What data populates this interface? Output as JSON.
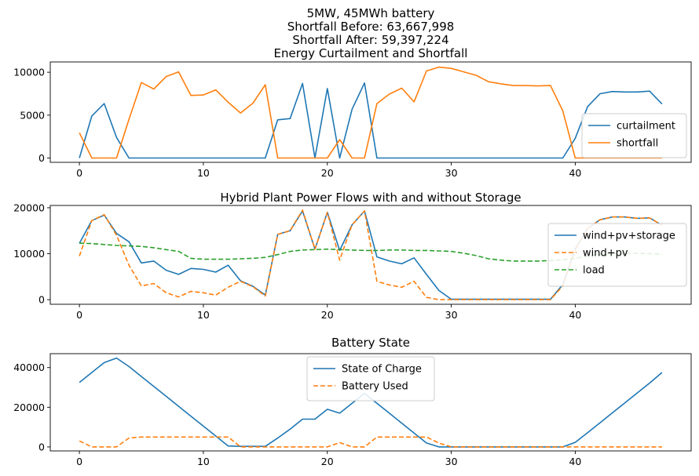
{
  "figure": {
    "suptitle_lines": [
      "5MW, 45MWh battery",
      "Shortfall Before: 63,667,998",
      "Shortfall After: 59,397,224"
    ]
  },
  "chart_data": [
    {
      "type": "line",
      "title": "Energy Curtailment and Shortfall",
      "xlim": [
        -2.35,
        49.35
      ],
      "ylim": [
        -500,
        11200
      ],
      "xticks": [
        0,
        10,
        20,
        30,
        40
      ],
      "yticks": [
        0,
        5000,
        10000
      ],
      "grid": false,
      "legend_position": "lower-right",
      "x": [
        0,
        1,
        2,
        3,
        4,
        5,
        6,
        7,
        8,
        9,
        10,
        11,
        12,
        13,
        14,
        15,
        16,
        17,
        18,
        19,
        20,
        21,
        22,
        23,
        24,
        25,
        26,
        27,
        28,
        29,
        30,
        31,
        32,
        33,
        34,
        35,
        36,
        37,
        38,
        39,
        40,
        41,
        42,
        43,
        44,
        45,
        46,
        47
      ],
      "series": [
        {
          "name": "curtailment",
          "color": "#1f77b4",
          "dash": "solid",
          "values": [
            0,
            4900,
            6350,
            2400,
            0,
            0,
            0,
            0,
            0,
            0,
            0,
            0,
            0,
            0,
            0,
            0,
            4450,
            4600,
            8700,
            0,
            8100,
            0,
            5700,
            8750,
            0,
            0,
            0,
            0,
            0,
            0,
            0,
            0,
            0,
            0,
            0,
            0,
            0,
            0,
            0,
            0,
            2300,
            6000,
            7500,
            7750,
            7700,
            7700,
            7800,
            6300
          ]
        },
        {
          "name": "shortfall",
          "color": "#ff7f0e",
          "dash": "solid",
          "values": [
            2950,
            0,
            0,
            0,
            4500,
            8800,
            8050,
            9500,
            10050,
            7300,
            7350,
            7950,
            6500,
            5250,
            6400,
            8550,
            0,
            0,
            0,
            0,
            0,
            2150,
            0,
            0,
            6350,
            7450,
            8150,
            6550,
            10150,
            10600,
            10450,
            10050,
            9650,
            8900,
            8650,
            8450,
            8450,
            8400,
            8450,
            5500,
            0,
            0,
            0,
            0,
            0,
            0,
            0,
            0
          ]
        }
      ]
    },
    {
      "type": "line",
      "title": "Hybrid Plant Power Flows with and without Storage",
      "xlim": [
        -2.35,
        49.35
      ],
      "ylim": [
        -1000,
        20500
      ],
      "xticks": [
        0,
        10,
        20,
        30,
        40
      ],
      "yticks": [
        0,
        10000,
        20000
      ],
      "grid": false,
      "legend_position": "center-right",
      "x": [
        0,
        1,
        2,
        3,
        4,
        5,
        6,
        7,
        8,
        9,
        10,
        11,
        12,
        13,
        14,
        15,
        16,
        17,
        18,
        19,
        20,
        21,
        22,
        23,
        24,
        25,
        26,
        27,
        28,
        29,
        30,
        31,
        32,
        33,
        34,
        35,
        36,
        37,
        38,
        39,
        40,
        41,
        42,
        43,
        44,
        45,
        46,
        47
      ],
      "series": [
        {
          "name": "wind+pv+storage",
          "color": "#1f77b4",
          "dash": "solid",
          "values": [
            12250,
            17200,
            18400,
            14400,
            12600,
            8000,
            8400,
            6400,
            5500,
            6800,
            6600,
            6000,
            7500,
            4100,
            2900,
            1000,
            14200,
            15000,
            19300,
            11000,
            19000,
            10700,
            16300,
            19300,
            9300,
            8400,
            7800,
            9100,
            5500,
            2000,
            100,
            100,
            100,
            100,
            100,
            100,
            100,
            100,
            100,
            3300,
            11000,
            15500,
            17400,
            18000,
            18000,
            17700,
            17800,
            16200
          ]
        },
        {
          "name": "wind+pv",
          "color": "#ff7f0e",
          "dash": "dashed",
          "values": [
            9500,
            17200,
            18500,
            14000,
            7500,
            3000,
            3500,
            1500,
            600,
            1800,
            1500,
            1000,
            2700,
            4000,
            2800,
            800,
            14200,
            15000,
            19500,
            11000,
            19000,
            8600,
            16300,
            19300,
            4000,
            3200,
            2700,
            4000,
            500,
            0,
            0,
            0,
            0,
            0,
            0,
            0,
            0,
            0,
            0,
            3000,
            10900,
            15500,
            17400,
            18000,
            18000,
            17700,
            17800,
            16200
          ]
        },
        {
          "name": "load",
          "color": "#2ca02c",
          "dash": "dashed",
          "values": [
            12300,
            12200,
            12000,
            11800,
            11700,
            11600,
            11300,
            10900,
            10500,
            9000,
            8800,
            8800,
            8800,
            8900,
            9000,
            9200,
            9800,
            10500,
            10800,
            10900,
            11000,
            10900,
            10800,
            10700,
            10700,
            10800,
            10800,
            10700,
            10700,
            10600,
            10500,
            10100,
            9600,
            8900,
            8600,
            8400,
            8400,
            8400,
            8500,
            8700,
            9000,
            9500,
            9800,
            10000,
            10100,
            10100,
            10000,
            9900
          ]
        }
      ]
    },
    {
      "type": "line",
      "title": "Battery State",
      "xlim": [
        -2.35,
        49.35
      ],
      "ylim": [
        -2000,
        47000
      ],
      "xticks": [
        0,
        10,
        20,
        30,
        40
      ],
      "yticks": [
        0,
        20000,
        40000
      ],
      "grid": false,
      "legend_position": "top-center",
      "x": [
        0,
        1,
        2,
        3,
        4,
        5,
        6,
        7,
        8,
        9,
        10,
        11,
        12,
        13,
        14,
        15,
        16,
        17,
        18,
        19,
        20,
        21,
        22,
        23,
        24,
        25,
        26,
        27,
        28,
        29,
        30,
        31,
        32,
        33,
        34,
        35,
        36,
        37,
        38,
        39,
        40,
        41,
        42,
        43,
        44,
        45,
        46,
        47
      ],
      "series": [
        {
          "name": "State of Charge",
          "color": "#1f77b4",
          "dash": "solid",
          "values": [
            32500,
            37500,
            42500,
            44800,
            40500,
            35500,
            30500,
            25500,
            20500,
            15500,
            10500,
            5500,
            500,
            300,
            300,
            300,
            4500,
            9000,
            14000,
            14000,
            19000,
            17000,
            22000,
            27000,
            22000,
            17000,
            12000,
            7000,
            2000,
            0,
            0,
            0,
            0,
            0,
            0,
            0,
            0,
            0,
            0,
            0,
            2300,
            7200,
            12200,
            17200,
            22200,
            27200,
            32200,
            37500
          ]
        },
        {
          "name": "Battery Used",
          "color": "#ff7f0e",
          "dash": "dashed",
          "values": [
            3000,
            0,
            0,
            0,
            4500,
            5000,
            5000,
            5000,
            5000,
            5000,
            5000,
            5000,
            5000,
            0,
            0,
            0,
            0,
            0,
            0,
            0,
            0,
            2200,
            0,
            0,
            5000,
            5000,
            5000,
            5000,
            5000,
            2000,
            0,
            0,
            0,
            0,
            0,
            0,
            0,
            0,
            0,
            0,
            0,
            0,
            0,
            0,
            0,
            0,
            0,
            0
          ]
        }
      ]
    }
  ]
}
